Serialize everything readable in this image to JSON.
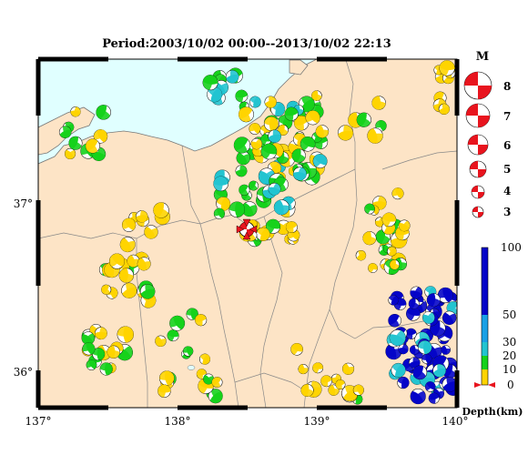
{
  "title": "Period:2003/10/02 00:00--2013/10/02 22:13",
  "axes": {
    "x_ticks": [
      "137°",
      "138°",
      "139°",
      "140°"
    ],
    "y_ticks": [
      "37°",
      "36°"
    ],
    "lon_range": [
      137.0,
      140.0
    ],
    "lat_range": [
      35.83,
      37.4
    ]
  },
  "magnitude_legend": {
    "title": "M",
    "items": [
      "8",
      "7",
      "6",
      "5",
      "4",
      "3"
    ]
  },
  "depth_legend": {
    "label": "Depth(km)",
    "ticks": [
      "100",
      "50",
      "30",
      "20",
      "10",
      "0"
    ]
  },
  "colors": {
    "sea": "#e0ffff",
    "land": "#fde4c6",
    "depth_0_10": "#ffd400",
    "depth_10_20": "#16d21c",
    "depth_20_30": "#22c4d0",
    "depth_30_50": "#1aa0e6",
    "depth_50_100": "#0505c8",
    "highlight": "#e8141e"
  },
  "highlight_event": {
    "lon": 138.5,
    "lat": 36.78,
    "magnitude": 5
  }
}
